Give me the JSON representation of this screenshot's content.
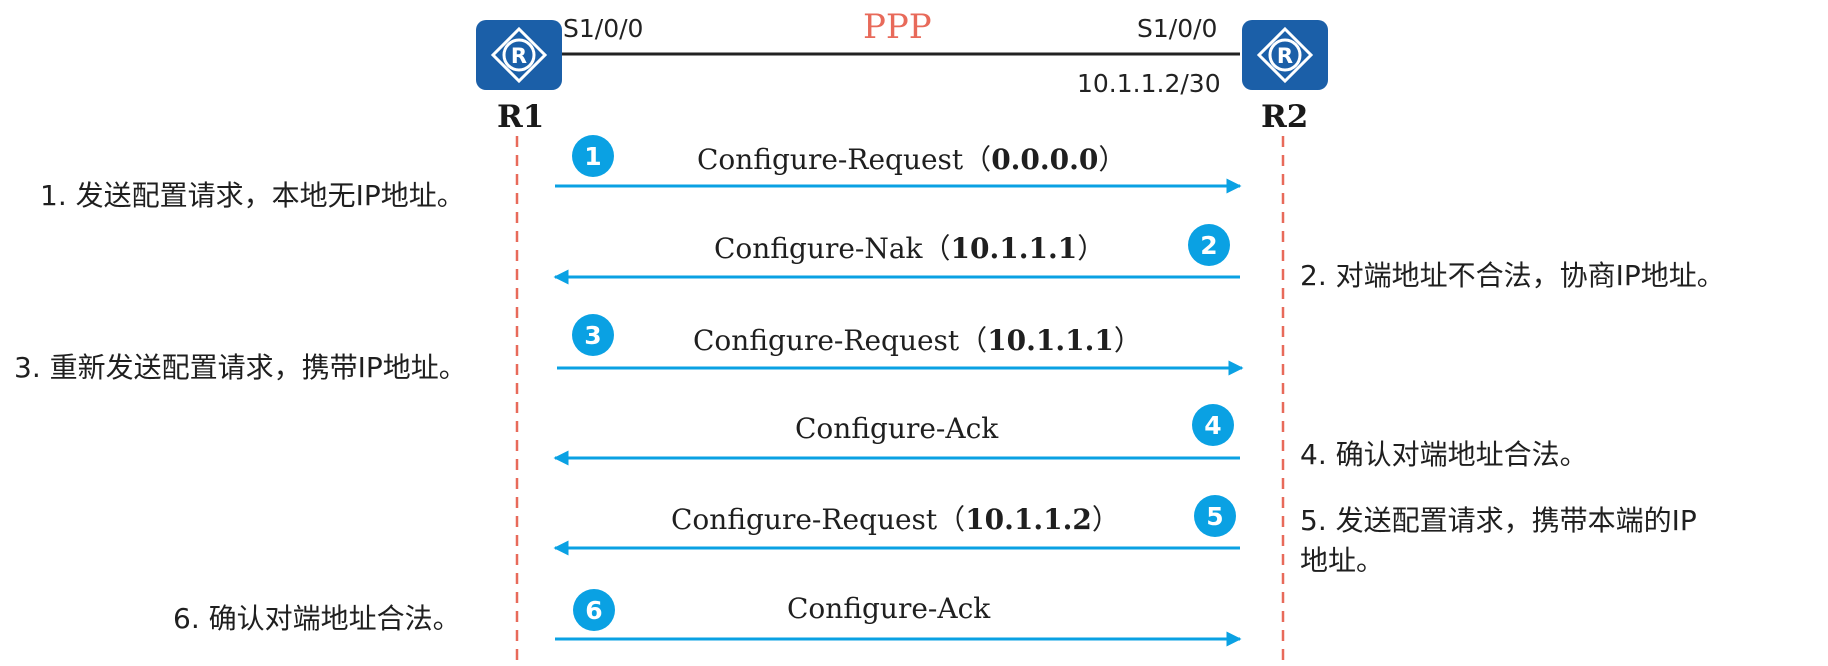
{
  "topology": {
    "link_label": "PPP",
    "r1": {
      "name": "R1",
      "interface": "S1/0/0"
    },
    "r2": {
      "name": "R2",
      "interface": "S1/0/0",
      "ip": "10.1.1.2/30"
    }
  },
  "steps": [
    {
      "num": "1",
      "msg": "Configure-Request",
      "param": "0.0.0.0",
      "dir": "right",
      "desc": "1. 发送配置请求，本地无IP地址。"
    },
    {
      "num": "2",
      "msg": "Configure-Nak",
      "param": "10.1.1.1",
      "dir": "left",
      "desc": "2. 对端地址不合法，协商IP地址。"
    },
    {
      "num": "3",
      "msg": "Configure-Request",
      "param": "10.1.1.1",
      "dir": "right",
      "desc": "3. 重新发送配置请求，携带IP地址。"
    },
    {
      "num": "4",
      "msg": "Configure-Ack",
      "param": "",
      "dir": "left",
      "desc": "4. 确认对端地址合法。"
    },
    {
      "num": "5",
      "msg": "Configure-Request",
      "param": "10.1.1.2",
      "dir": "left",
      "desc_line1": "5. 发送配置请求，携带本端的IP",
      "desc_line2": "地址。"
    },
    {
      "num": "6",
      "msg": "Configure-Ack",
      "param": "",
      "dir": "right",
      "desc": "6. 确认对端地址合法。"
    }
  ],
  "colors": {
    "arrow": "#0aa1e3",
    "lifeline": "#e86a5a",
    "router": "#1b5fa8",
    "ppp": "#e86a5a"
  },
  "icons": {
    "router": "router-icon"
  }
}
